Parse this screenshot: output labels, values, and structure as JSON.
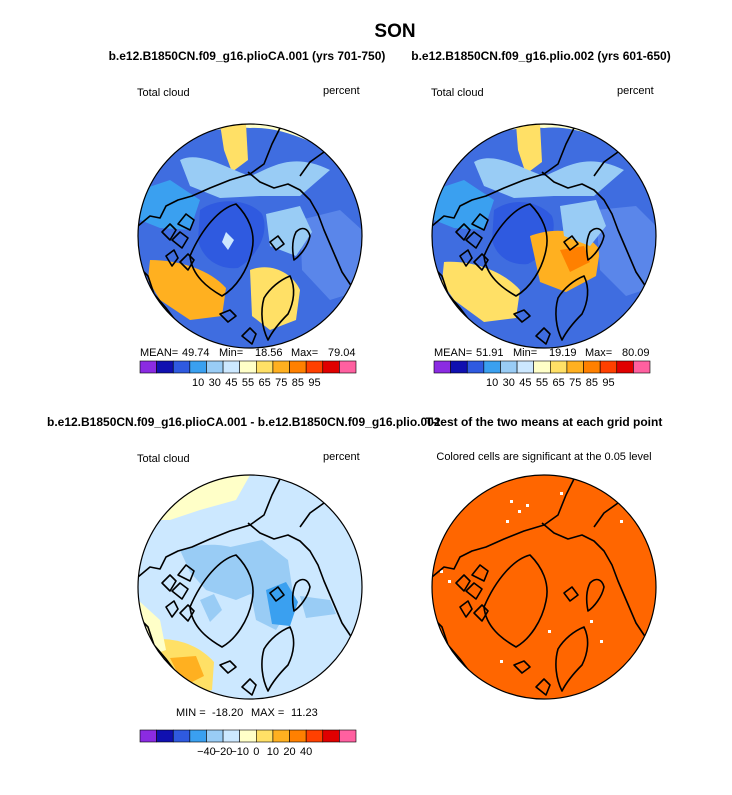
{
  "chart_data": {
    "type": "map",
    "season": "SON",
    "panels": [
      {
        "id": "p1",
        "title": "b.e12.B1850CN.f09_g16.plioCA.001 (yrs 701-750)",
        "variable": "Total cloud",
        "units": "percent",
        "stats": {
          "mean_label": "MEAN=",
          "mean": "49.74",
          "min_label": "Min=",
          "min": "18.56",
          "max_label": "Max=",
          "max": "79.04"
        },
        "colorbar": {
          "ticks": [
            "10",
            "30",
            "45",
            "55",
            "65",
            "75",
            "85",
            "95"
          ],
          "colors": [
            "#8b2be2",
            "#1010b0",
            "#2f5ae0",
            "#3aa0f0",
            "#99ccf5",
            "#cce8ff",
            "#ffffc8",
            "#ffe066",
            "#ffb020",
            "#ff8000",
            "#ff4000",
            "#e00000",
            "#ff60a0"
          ]
        }
      },
      {
        "id": "p2",
        "title": "b.e12.B1850CN.f09_g16.plio.002 (yrs 601-650)",
        "variable": "Total cloud",
        "units": "percent",
        "stats": {
          "mean_label": "MEAN=",
          "mean": "51.91",
          "min_label": "Min=",
          "min": "19.19",
          "max_label": "Max=",
          "max": "80.09"
        },
        "colorbar": {
          "ticks": [
            "10",
            "30",
            "45",
            "55",
            "65",
            "75",
            "85",
            "95"
          ],
          "colors": [
            "#8b2be2",
            "#1010b0",
            "#2f5ae0",
            "#3aa0f0",
            "#99ccf5",
            "#cce8ff",
            "#ffffc8",
            "#ffe066",
            "#ffb020",
            "#ff8000",
            "#ff4000",
            "#e00000",
            "#ff60a0"
          ]
        }
      },
      {
        "id": "p3",
        "title": "b.e12.B1850CN.f09_g16.plioCA.001 - b.e12.B1850CN.f09_g16.plio.002",
        "variable": "Total cloud",
        "units": "percent",
        "stats": {
          "min_label": "MIN =",
          "min": "-18.20",
          "max_label": "MAX =",
          "max": "11.23"
        },
        "colorbar": {
          "ticks": [
            "−40",
            "−20",
            "−10",
            "0",
            "10",
            "20",
            "40"
          ],
          "colors": [
            "#8b2be2",
            "#1010b0",
            "#2f5ae0",
            "#3aa0f0",
            "#99ccf5",
            "#cce8ff",
            "#ffffc8",
            "#ffe066",
            "#ffb020",
            "#ff8000",
            "#ff4000",
            "#e00000",
            "#ff60a0"
          ]
        }
      },
      {
        "id": "p4",
        "title": "T-test of the two means at each grid point",
        "subtitle": "Colored cells are significant at the 0.05 level",
        "fill_color": "#ff6600"
      }
    ]
  },
  "colors": {
    "land_outline": "#000000",
    "significance_fill": "#ff6600"
  }
}
